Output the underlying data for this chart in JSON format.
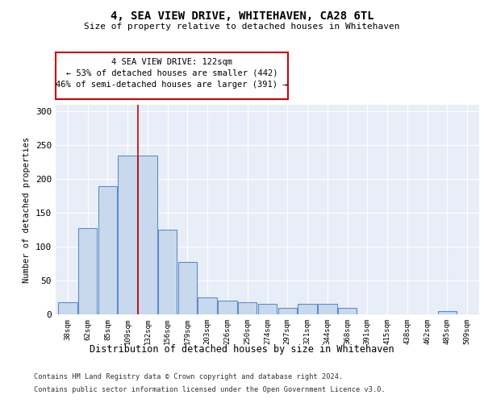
{
  "title": "4, SEA VIEW DRIVE, WHITEHAVEN, CA28 6TL",
  "subtitle": "Size of property relative to detached houses in Whitehaven",
  "xlabel": "Distribution of detached houses by size in Whitehaven",
  "ylabel": "Number of detached properties",
  "bar_labels": [
    "38sqm",
    "62sqm",
    "85sqm",
    "109sqm",
    "132sqm",
    "156sqm",
    "179sqm",
    "203sqm",
    "226sqm",
    "250sqm",
    "274sqm",
    "297sqm",
    "321sqm",
    "344sqm",
    "368sqm",
    "391sqm",
    "415sqm",
    "438sqm",
    "462sqm",
    "485sqm",
    "509sqm"
  ],
  "bar_values": [
    18,
    128,
    190,
    235,
    235,
    125,
    78,
    25,
    20,
    18,
    15,
    10,
    15,
    15,
    10,
    0,
    0,
    0,
    0,
    5,
    0
  ],
  "bar_color": "#c9d9ed",
  "bar_edgecolor": "#5b8dc8",
  "background_color": "#e8eef8",
  "grid_color": "#ffffff",
  "vline_x": 3.5,
  "vline_color": "#cc0000",
  "annotation_text": "4 SEA VIEW DRIVE: 122sqm\n← 53% of detached houses are smaller (442)\n46% of semi-detached houses are larger (391) →",
  "annotation_box_color": "#ffffff",
  "annotation_box_edgecolor": "#cc0000",
  "ylim": [
    0,
    310
  ],
  "yticks": [
    0,
    50,
    100,
    150,
    200,
    250,
    300
  ],
  "footnote1": "Contains HM Land Registry data © Crown copyright and database right 2024.",
  "footnote2": "Contains public sector information licensed under the Open Government Licence v3.0."
}
